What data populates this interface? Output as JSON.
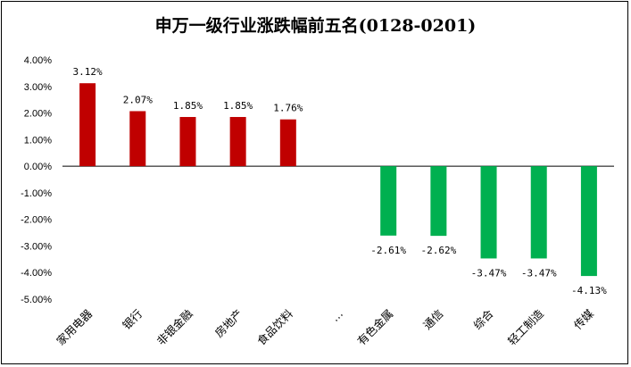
{
  "chart_data": {
    "type": "bar",
    "title": "申万一级行业涨跌幅前五名(0128-0201)",
    "categories": [
      "家用电器",
      "银行",
      "非银金融",
      "房地产",
      "食品饮料",
      "…",
      "有色金属",
      "通信",
      "综合",
      "轻工制造",
      "传媒"
    ],
    "values": [
      3.12,
      2.07,
      1.85,
      1.85,
      1.76,
      null,
      -2.61,
      -2.62,
      -3.47,
      -3.47,
      -4.13
    ],
    "data_labels": [
      "3.12%",
      "2.07%",
      "1.85%",
      "1.85%",
      "1.76%",
      "",
      "-2.61%",
      "-2.62%",
      "-3.47%",
      "-3.47%",
      "-4.13%"
    ],
    "y_ticks": [
      "4.00%",
      "3.00%",
      "2.00%",
      "1.00%",
      "0.00%",
      "-1.00%",
      "-2.00%",
      "-3.00%",
      "-4.00%",
      "-5.00%"
    ],
    "ylim": [
      -5,
      4
    ],
    "grid": false,
    "legend": "none",
    "xlabel": "",
    "ylabel": "",
    "colors": {
      "positive": "#C00000",
      "negative": "#00B050"
    }
  }
}
